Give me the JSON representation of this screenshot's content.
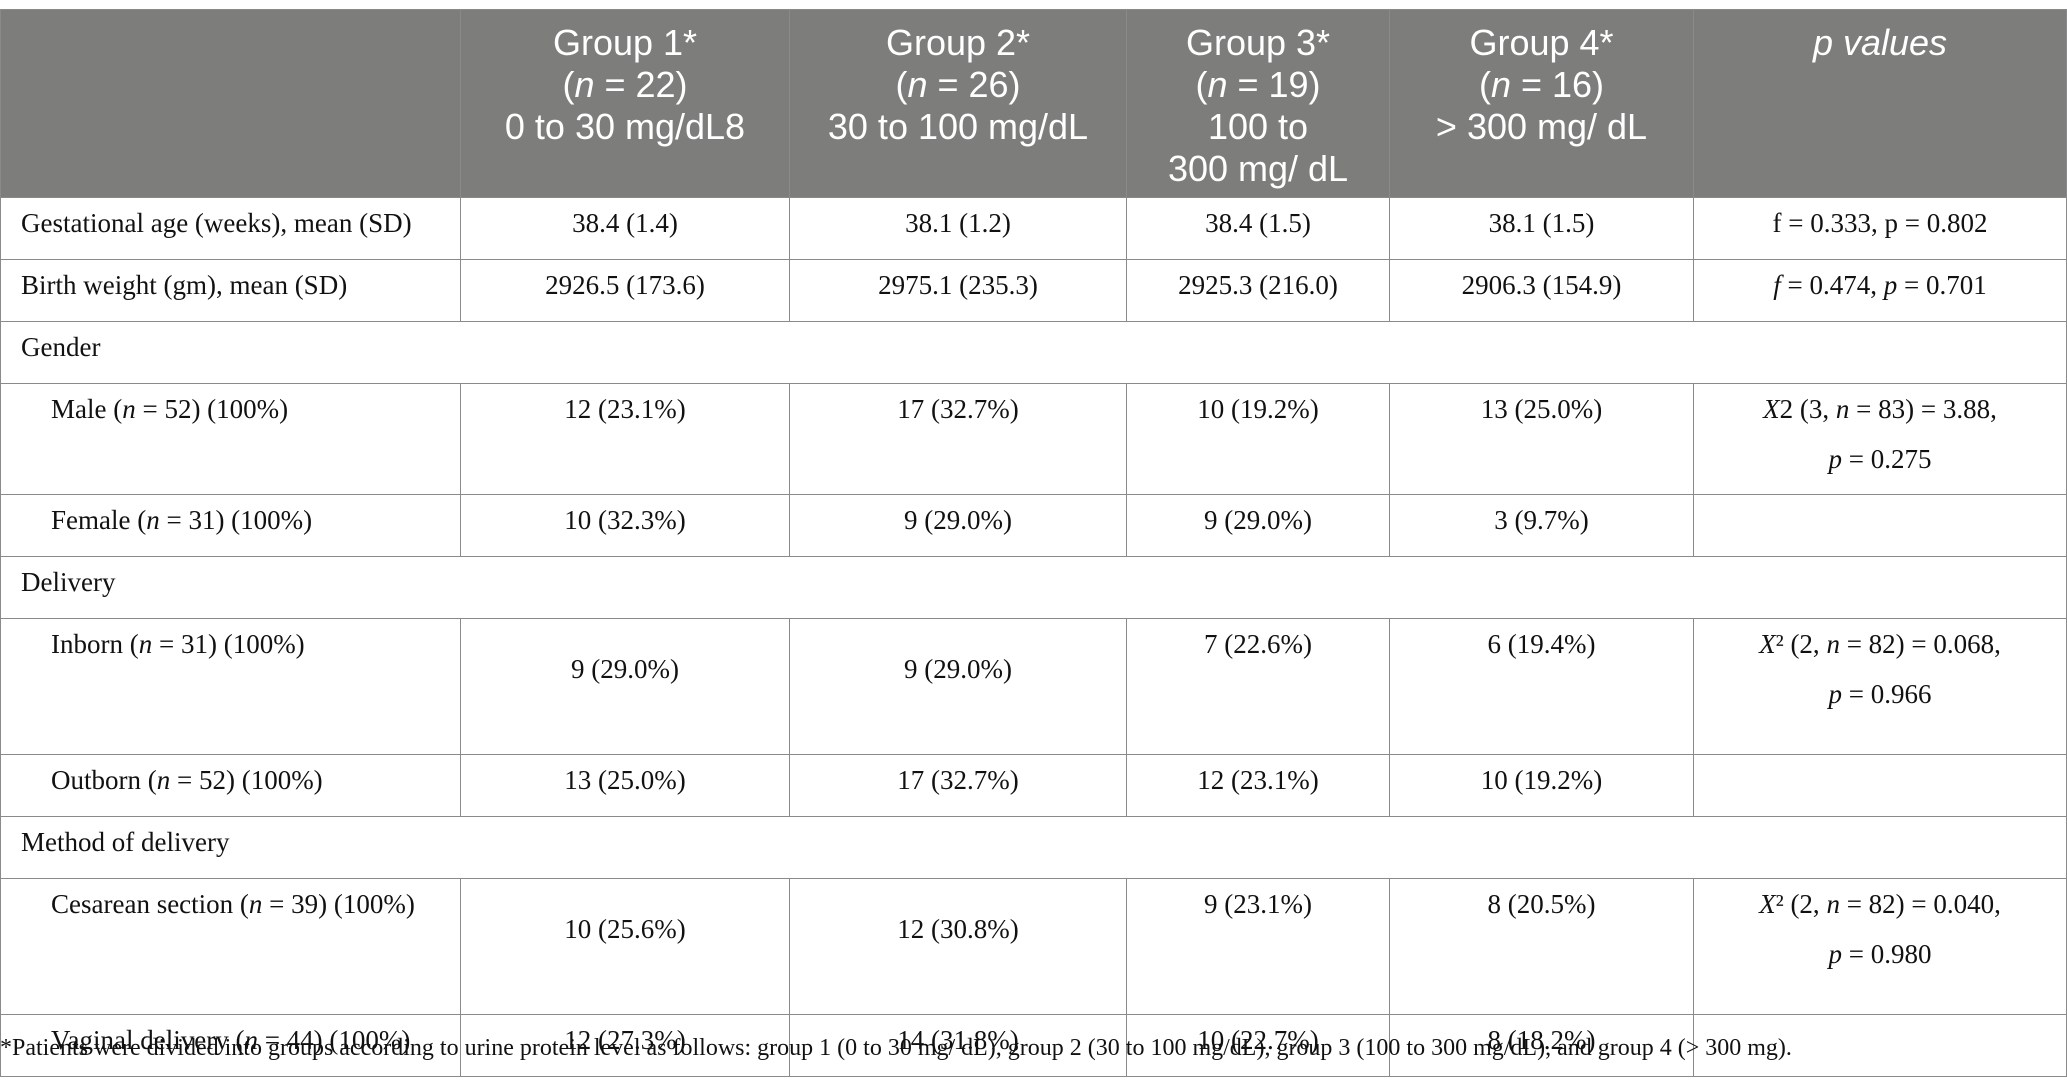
{
  "table": {
    "headers": [
      {
        "lines": [
          "Group 1*",
          "(n = 22)",
          "0 to 30 mg/dL8"
        ]
      },
      {
        "lines": [
          "Group 2*",
          "(n = 26)",
          "30 to 100 mg/dL"
        ]
      },
      {
        "lines": [
          "Group 3*",
          "(n = 19)",
          "100 to",
          "300 mg/ dL"
        ]
      },
      {
        "lines": [
          "Group 4*",
          "(n = 16)",
          "> 300 mg/ dL"
        ]
      },
      {
        "lines": [
          "p values"
        ]
      }
    ],
    "rows": {
      "gestational": {
        "label": "Gestational age (weeks), mean (SD)",
        "g1": "38.4 (1.4)",
        "g2": "38.1 (1.2)",
        "g3": "38.4 (1.5)",
        "g4": "38.1 (1.5)",
        "p": "f = 0.333, p = 0.802"
      },
      "birth_weight": {
        "label": "Birth weight (gm), mean (SD)",
        "g1": "2926.5 (173.6)",
        "g2": "2975.1 (235.3)",
        "g3": "2925.3 (216.0)",
        "g4": "2906.3 (154.9)",
        "p": "f = 0.474, p = 0.701"
      },
      "gender": {
        "label": "Gender"
      },
      "male": {
        "label": "Male (n = 52) (100%)",
        "g1": "12 (23.1%)",
        "g2": "17 (32.7%)",
        "g3": "10 (19.2%)",
        "g4": "13 (25.0%)",
        "p_line1": "X2 (3, n = 83) = 3.88,",
        "p_line2": "p = 0.275"
      },
      "female": {
        "label": "Female (n = 31) (100%)",
        "g1": "10 (32.3%)",
        "g2": "9 (29.0%)",
        "g3": "9 (29.0%)",
        "g4": "3 (9.7%)",
        "p": ""
      },
      "delivery": {
        "label": "Delivery"
      },
      "inborn": {
        "label": "Inborn (n = 31) (100%)",
        "g1": "9 (29.0%)",
        "g2": "9 (29.0%)",
        "g3": "7 (22.6%)",
        "g4": "6 (19.4%)",
        "p_line1": "X² (2, n = 82) = 0.068,",
        "p_line2": "p = 0.966"
      },
      "outborn": {
        "label": "Outborn (n = 52) (100%)",
        "g1": "13 (25.0%)",
        "g2": "17 (32.7%)",
        "g3": "12 (23.1%)",
        "g4": "10 (19.2%)",
        "p": ""
      },
      "method": {
        "label": "Method of delivery"
      },
      "cesarean": {
        "label": "Cesarean section (n = 39) (100%)",
        "g1": "10 (25.6%)",
        "g2": "12 (30.8%)",
        "g3": "9 (23.1%)",
        "g4": "8 (20.5%)",
        "p_line1": "X² (2, n = 82) = 0.040,",
        "p_line2": "p = 0.980"
      },
      "vaginal": {
        "label": "Vaginal delivery (n = 44) (100%)",
        "g1": "12 (27.3%)",
        "g2": "14 (31.8%)",
        "g3": "10 (22.7%)",
        "g4": "8 (18.2%)",
        "p": ""
      }
    },
    "footnote": "*Patients were divided into groups according to urine protein level as follows: group 1 (0 to 30 mg/ dL), group 2 (30 to 100 mg/dL), group 3 (100 to 300 mg/dL), and group 4 (> 300 mg)."
  }
}
